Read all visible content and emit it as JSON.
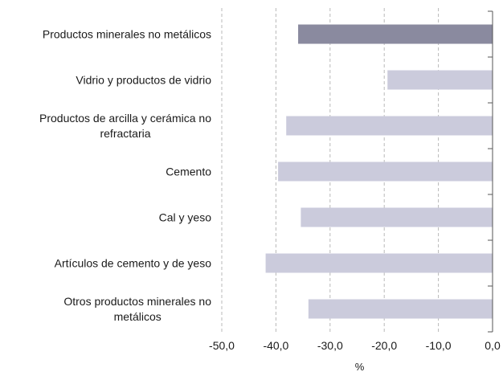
{
  "chart_data": {
    "type": "bar",
    "orientation": "horizontal",
    "categories": [
      "Productos minerales no metálicos",
      "Vidrio y productos de vidrio",
      "Productos de arcilla y cerámica no refractaria",
      "Cemento",
      "Cal y yeso",
      "Artículos de cemento y de yeso",
      "Otros productos minerales no metálicos"
    ],
    "category_label_lines": [
      [
        "Productos minerales no metálicos"
      ],
      [
        "Vidrio y productos de vidrio"
      ],
      [
        "Productos de arcilla y cerámica no",
        "refractaria"
      ],
      [
        "Cemento"
      ],
      [
        "Cal y yeso"
      ],
      [
        "Artículos de cemento y de yeso"
      ],
      [
        "Otros productos minerales no",
        "metálicos"
      ]
    ],
    "values": [
      -35.9,
      -19.4,
      -38.1,
      -39.6,
      -35.4,
      -41.9,
      -34.0
    ],
    "highlight_index": 0,
    "xlabel": "%",
    "xlim": [
      -50,
      0
    ],
    "xticks": [
      -50,
      -40,
      -30,
      -20,
      -10,
      0
    ],
    "xtick_labels": [
      "-50,0",
      "-40,0",
      "-30,0",
      "-20,0",
      "-10,0",
      "0,0"
    ],
    "grid": "vertical dashed",
    "legend": "none",
    "colors": {
      "highlight": "#8a8a9f",
      "bar": "#cbcbdc",
      "grid": "#b8b8b8",
      "axis": "#555555"
    }
  }
}
